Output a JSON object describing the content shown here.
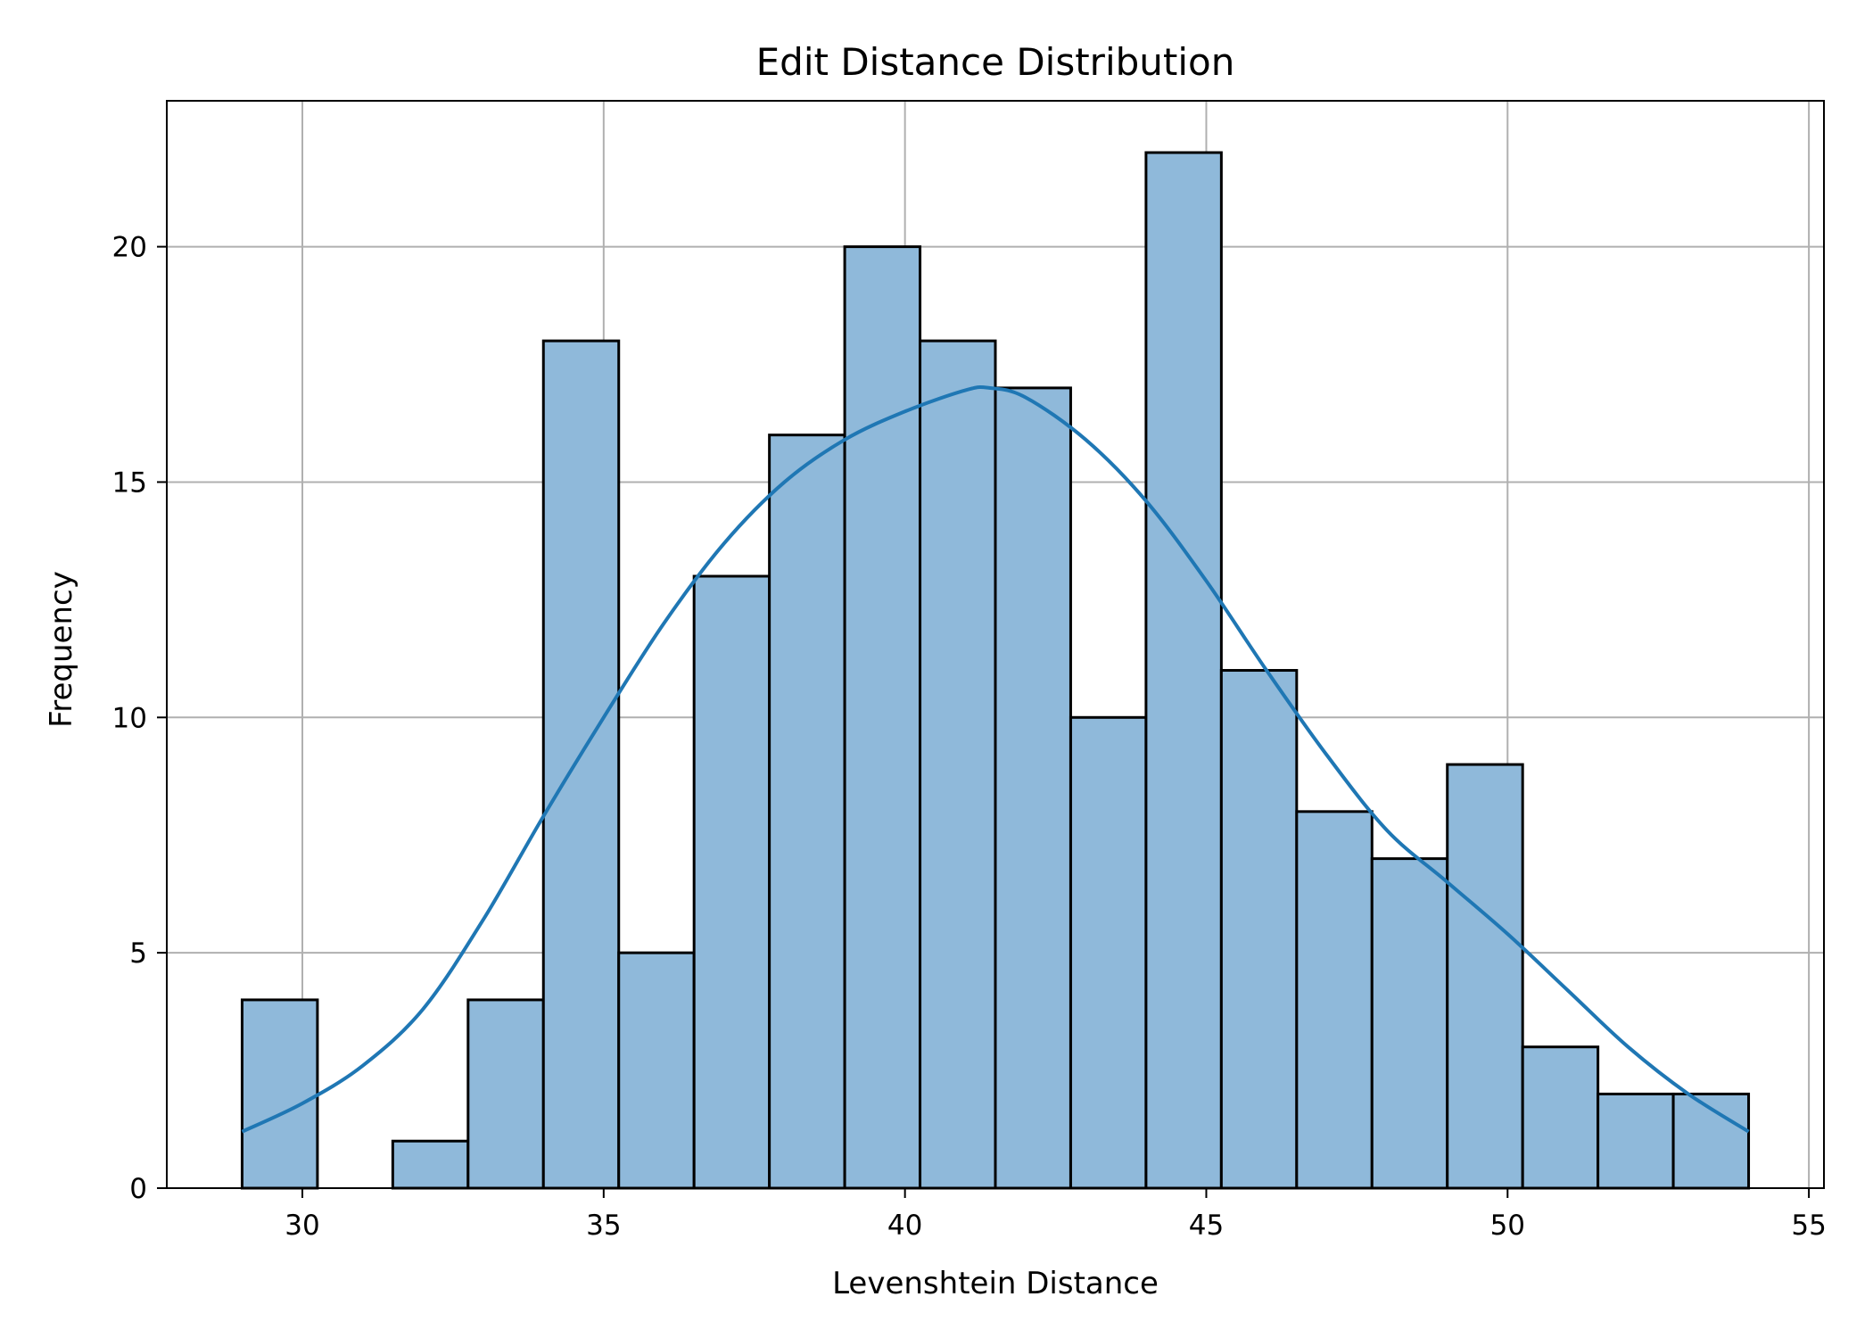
{
  "chart_data": {
    "type": "bar",
    "title": "Edit Distance Distribution",
    "xlabel": "Levenshtein Distance",
    "ylabel": "Frequency",
    "xlim": [
      27.75,
      55.25
    ],
    "ylim": [
      0,
      23.1
    ],
    "xticks": [
      30,
      35,
      40,
      45,
      50,
      55
    ],
    "yticks": [
      0,
      5,
      10,
      15,
      20
    ],
    "grid": true,
    "bins": [
      {
        "x0": 29.0,
        "x1": 30.25,
        "count": 4
      },
      {
        "x0": 30.25,
        "x1": 31.5,
        "count": 0
      },
      {
        "x0": 31.5,
        "x1": 32.75,
        "count": 1
      },
      {
        "x0": 32.75,
        "x1": 34.0,
        "count": 4
      },
      {
        "x0": 34.0,
        "x1": 35.25,
        "count": 18
      },
      {
        "x0": 35.25,
        "x1": 36.5,
        "count": 5
      },
      {
        "x0": 36.5,
        "x1": 37.75,
        "count": 13
      },
      {
        "x0": 37.75,
        "x1": 39.0,
        "count": 16
      },
      {
        "x0": 39.0,
        "x1": 40.25,
        "count": 20
      },
      {
        "x0": 40.25,
        "x1": 41.5,
        "count": 18
      },
      {
        "x0": 41.5,
        "x1": 42.75,
        "count": 17
      },
      {
        "x0": 42.75,
        "x1": 44.0,
        "count": 10
      },
      {
        "x0": 44.0,
        "x1": 45.25,
        "count": 22
      },
      {
        "x0": 45.25,
        "x1": 46.5,
        "count": 11
      },
      {
        "x0": 46.5,
        "x1": 47.75,
        "count": 8
      },
      {
        "x0": 47.75,
        "x1": 49.0,
        "count": 7
      },
      {
        "x0": 49.0,
        "x1": 50.25,
        "count": 9
      },
      {
        "x0": 50.25,
        "x1": 51.5,
        "count": 3
      },
      {
        "x0": 51.5,
        "x1": 52.75,
        "count": 2
      },
      {
        "x0": 52.75,
        "x1": 54.0,
        "count": 2
      }
    ],
    "kde": {
      "x": [
        29,
        30,
        31,
        32,
        33,
        34,
        35,
        36,
        37,
        38,
        39,
        40,
        41,
        41.4,
        42,
        43,
        44,
        45,
        46,
        47,
        48,
        49,
        50,
        51,
        52,
        53,
        54
      ],
      "y": [
        1.2,
        1.8,
        2.6,
        3.8,
        5.7,
        7.9,
        10.0,
        12.0,
        13.7,
        15.0,
        15.9,
        16.5,
        16.95,
        17.0,
        16.8,
        15.9,
        14.6,
        12.9,
        11.0,
        9.2,
        7.6,
        6.5,
        5.4,
        4.2,
        3.0,
        2.0,
        1.2
      ]
    },
    "colors": {
      "bar_fill": "#8fb9da",
      "bar_edge": "#000000",
      "kde_line": "#1f77b4",
      "grid": "#b0b0b0"
    }
  }
}
